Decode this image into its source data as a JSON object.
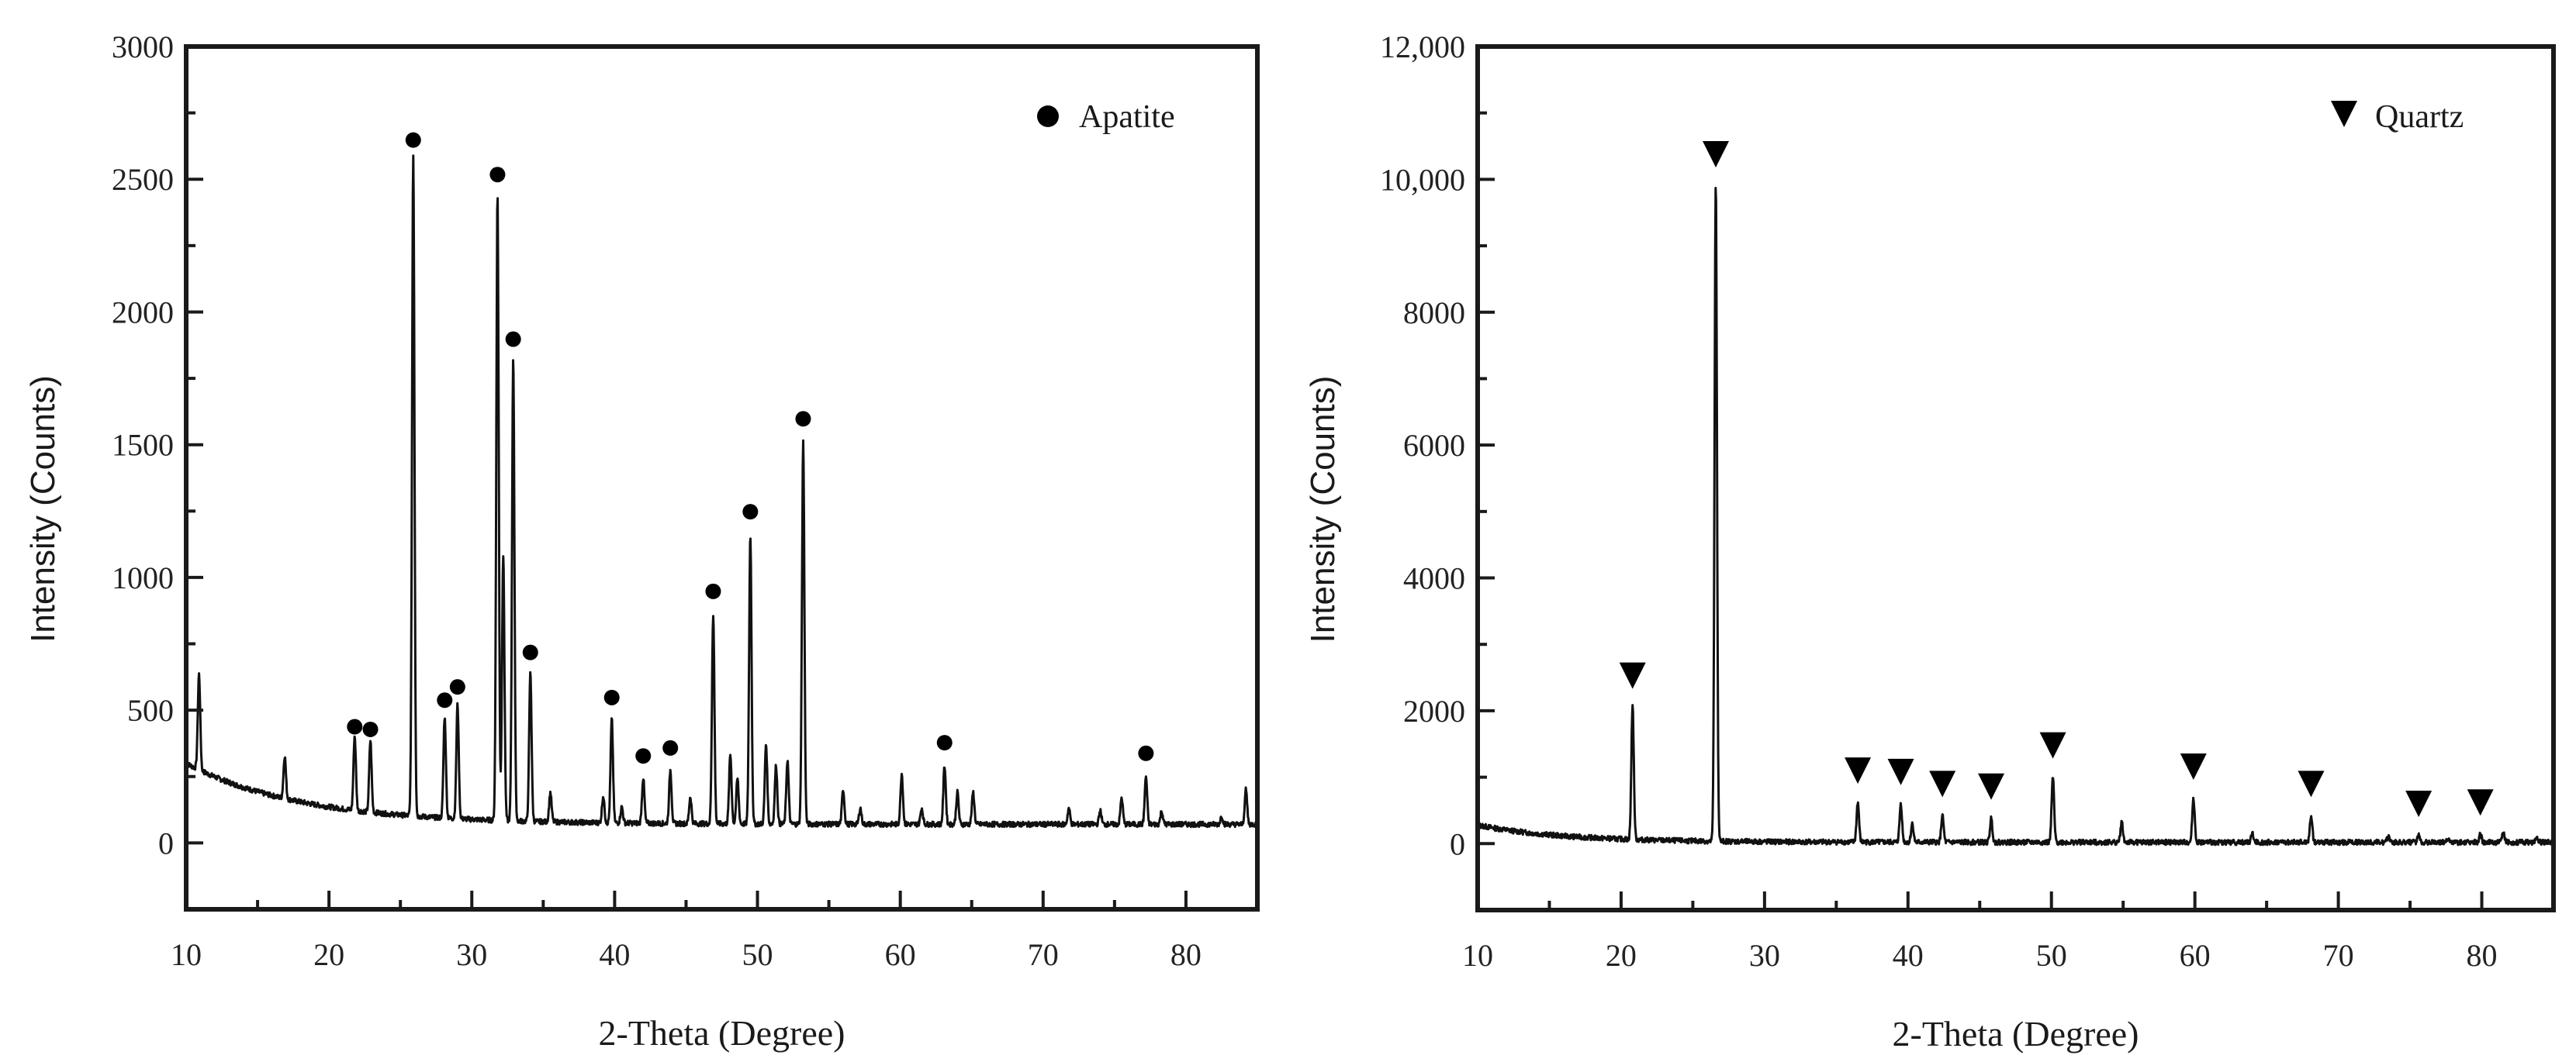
{
  "chart_data": [
    {
      "type": "line",
      "title": "",
      "xlabel": "2-Theta (Degree)",
      "ylabel": "Intensity (Counts)",
      "xlim": [
        10,
        85
      ],
      "ylim": [
        -250,
        3000
      ],
      "xticks": [
        10,
        20,
        30,
        40,
        50,
        60,
        70,
        80
      ],
      "yticks": [
        0,
        500,
        1000,
        1500,
        2000,
        2500,
        3000
      ],
      "ytick_labels": [
        "0",
        "500",
        "1000",
        "1500",
        "2000",
        "2500",
        "3000"
      ],
      "grid": false,
      "legend": {
        "position": "upper right",
        "entries": [
          {
            "label": "Apatite",
            "marker": "circle"
          }
        ]
      },
      "background": {
        "start": 300,
        "end": 70,
        "decay": 8
      },
      "peaks": [
        {
          "x": 10.9,
          "y": 430
        },
        {
          "x": 16.9,
          "y": 230
        },
        {
          "x": 21.8,
          "y": 350,
          "marked": true
        },
        {
          "x": 22.9,
          "y": 340,
          "marked": true
        },
        {
          "x": 25.9,
          "y": 2560,
          "marked": true
        },
        {
          "x": 28.1,
          "y": 450,
          "marked": true
        },
        {
          "x": 29.0,
          "y": 500,
          "marked": true
        },
        {
          "x": 31.8,
          "y": 2430,
          "marked": true
        },
        {
          "x": 32.2,
          "y": 1070
        },
        {
          "x": 32.9,
          "y": 1810,
          "marked": true
        },
        {
          "x": 34.1,
          "y": 630,
          "marked": true
        },
        {
          "x": 35.5,
          "y": 180
        },
        {
          "x": 39.2,
          "y": 170
        },
        {
          "x": 39.8,
          "y": 460,
          "marked": true
        },
        {
          "x": 40.5,
          "y": 130
        },
        {
          "x": 42.0,
          "y": 240,
          "marked": true
        },
        {
          "x": 43.9,
          "y": 270,
          "marked": true
        },
        {
          "x": 45.3,
          "y": 170
        },
        {
          "x": 46.9,
          "y": 860,
          "marked": true
        },
        {
          "x": 48.1,
          "y": 330
        },
        {
          "x": 48.6,
          "y": 240
        },
        {
          "x": 49.5,
          "y": 1160,
          "marked": true
        },
        {
          "x": 50.6,
          "y": 370
        },
        {
          "x": 51.3,
          "y": 290
        },
        {
          "x": 52.1,
          "y": 310
        },
        {
          "x": 53.2,
          "y": 1510,
          "marked": true
        },
        {
          "x": 56.0,
          "y": 200
        },
        {
          "x": 57.2,
          "y": 130
        },
        {
          "x": 60.1,
          "y": 260
        },
        {
          "x": 61.5,
          "y": 130
        },
        {
          "x": 63.1,
          "y": 290,
          "marked": true
        },
        {
          "x": 64.0,
          "y": 190
        },
        {
          "x": 65.1,
          "y": 190
        },
        {
          "x": 71.8,
          "y": 130
        },
        {
          "x": 74.0,
          "y": 120
        },
        {
          "x": 75.5,
          "y": 170
        },
        {
          "x": 77.2,
          "y": 250,
          "marked": true
        },
        {
          "x": 78.3,
          "y": 120
        },
        {
          "x": 82.5,
          "y": 100
        },
        {
          "x": 84.2,
          "y": 200
        }
      ]
    },
    {
      "type": "line",
      "title": "",
      "xlabel": "2-Theta (Degree)",
      "ylabel": "Intensity (Counts)",
      "xlim": [
        10,
        85
      ],
      "ylim": [
        -1000,
        12000
      ],
      "xticks": [
        10,
        20,
        30,
        40,
        50,
        60,
        70,
        80
      ],
      "yticks": [
        0,
        2000,
        4000,
        6000,
        8000,
        10000,
        12000
      ],
      "ytick_labels": [
        "0",
        "2000",
        "4000",
        "6000",
        "8000",
        "10,000",
        "12,000"
      ],
      "grid": false,
      "legend": {
        "position": "upper right",
        "entries": [
          {
            "label": "Quartz",
            "marker": "triangle-down"
          }
        ]
      },
      "background": {
        "start": 280,
        "end": 20,
        "decay": 6
      },
      "peaks": [
        {
          "x": 20.8,
          "y": 2050,
          "marked": true
        },
        {
          "x": 26.6,
          "y": 9900,
          "marked": true
        },
        {
          "x": 36.5,
          "y": 620,
          "marked": true
        },
        {
          "x": 39.5,
          "y": 600,
          "marked": true
        },
        {
          "x": 40.3,
          "y": 300
        },
        {
          "x": 42.4,
          "y": 420,
          "marked": true
        },
        {
          "x": 45.8,
          "y": 380,
          "marked": true
        },
        {
          "x": 50.1,
          "y": 1000,
          "marked": true
        },
        {
          "x": 54.9,
          "y": 320
        },
        {
          "x": 59.9,
          "y": 680,
          "marked": true
        },
        {
          "x": 64.0,
          "y": 150
        },
        {
          "x": 68.1,
          "y": 420,
          "marked": true
        },
        {
          "x": 73.5,
          "y": 120
        },
        {
          "x": 75.6,
          "y": 120,
          "marked": true
        },
        {
          "x": 77.6,
          "y": 80
        },
        {
          "x": 79.9,
          "y": 140,
          "marked": true
        },
        {
          "x": 81.5,
          "y": 160
        },
        {
          "x": 83.8,
          "y": 80
        }
      ]
    }
  ],
  "left": {
    "ylabel": "Intensity (Counts)",
    "xlabel": "2-Theta (Degree)",
    "legend_label": "Apatite"
  },
  "right": {
    "ylabel": "Intensity (Counts)",
    "xlabel": "2-Theta (Degree)",
    "legend_label": "Quartz"
  }
}
